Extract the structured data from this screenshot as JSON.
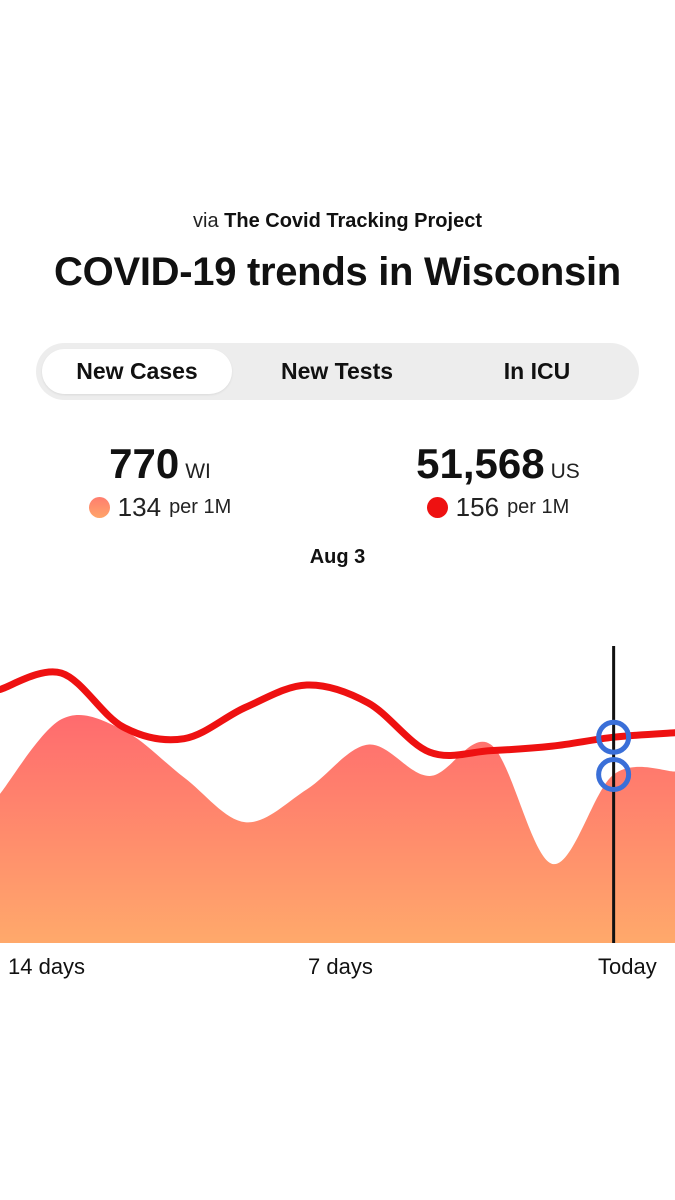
{
  "header": {
    "source_prefix": "via",
    "source_name": "The Covid Tracking Project",
    "title": "COVID-19 trends in Wisconsin"
  },
  "tabs": [
    {
      "label": "New Cases",
      "active": true
    },
    {
      "label": "New Tests",
      "active": false
    },
    {
      "label": "In ICU",
      "active": false
    }
  ],
  "stats": {
    "wi": {
      "value": "770",
      "region": "WI",
      "per_million": "134",
      "unit": "per 1M",
      "color": "#ff8a6b"
    },
    "us": {
      "value": "51,568",
      "region": "US",
      "per_million": "156",
      "unit": "per 1M",
      "color": "#ee1111"
    }
  },
  "selected_date": "Aug 3",
  "chart_data": {
    "type": "area",
    "x_tick_labels": [
      "14 days",
      "7 days",
      "Today"
    ],
    "series": [
      {
        "region": "WI",
        "style": "area",
        "color": "#ff7a6e",
        "values": [
          100,
          150,
          143,
          111,
          81,
          103,
          133,
          112,
          133,
          53,
          113,
          115
        ]
      },
      {
        "region": "US",
        "style": "line",
        "color": "#ee1111",
        "values": [
          170,
          181,
          145,
          137,
          158,
          173,
          161,
          128,
          129,
          132,
          138,
          141
        ]
      }
    ],
    "ylim": [
      0,
      230
    ],
    "selected_index": 10,
    "marker_color": "#3a6fd8"
  }
}
